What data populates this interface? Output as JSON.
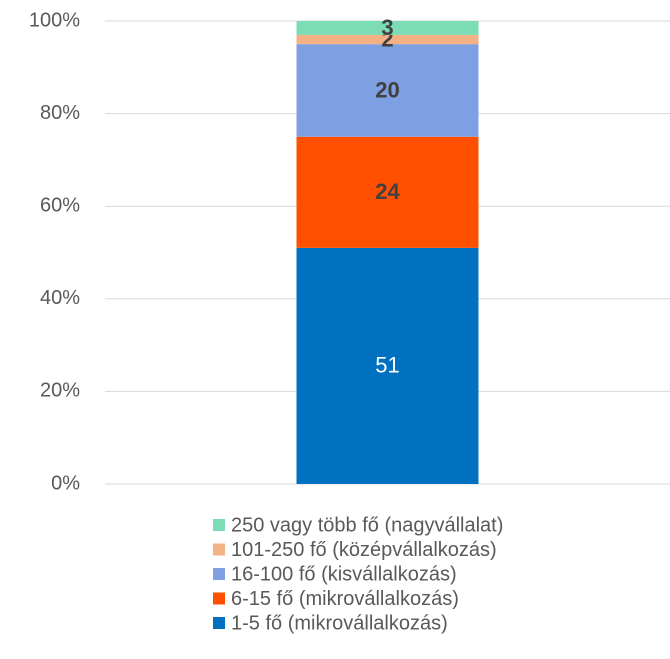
{
  "chart_data": {
    "type": "stacked_bar",
    "categories": [
      null
    ],
    "series": [
      {
        "name": "1-5 fő (mikrovállalkozás)",
        "color": "#0070c0",
        "label_color": "#ffffff",
        "label_weight": "normal",
        "values": [
          51
        ]
      },
      {
        "name": "6-15 fő (mikrovállalkozás)",
        "color": "#ff5000",
        "label_color": "#404040",
        "label_weight": "bold",
        "values": [
          24
        ]
      },
      {
        "name": "16-100 fő (kisvállalkozás)",
        "color": "#7f9fe3",
        "label_color": "#404040",
        "label_weight": "bold",
        "values": [
          20
        ]
      },
      {
        "name": "101-250 fő (középvállalkozás)",
        "color": "#f4b183",
        "label_color": "#404040",
        "label_weight": "bold",
        "values": [
          2
        ]
      },
      {
        "name": "250 vagy több fő (nagyvállalat)",
        "color": "#7bdcb5",
        "label_color": "#404040",
        "label_weight": "bold",
        "values": [
          3
        ]
      }
    ],
    "ylim": [
      0,
      100
    ],
    "yticks": [
      {
        "value": 0,
        "label": "0%"
      },
      {
        "value": 20,
        "label": "20%"
      },
      {
        "value": 40,
        "label": "40%"
      },
      {
        "value": 60,
        "label": "60%"
      },
      {
        "value": 80,
        "label": "80%"
      },
      {
        "value": 100,
        "label": "100%"
      }
    ],
    "grid": true,
    "legend": "bottom"
  }
}
